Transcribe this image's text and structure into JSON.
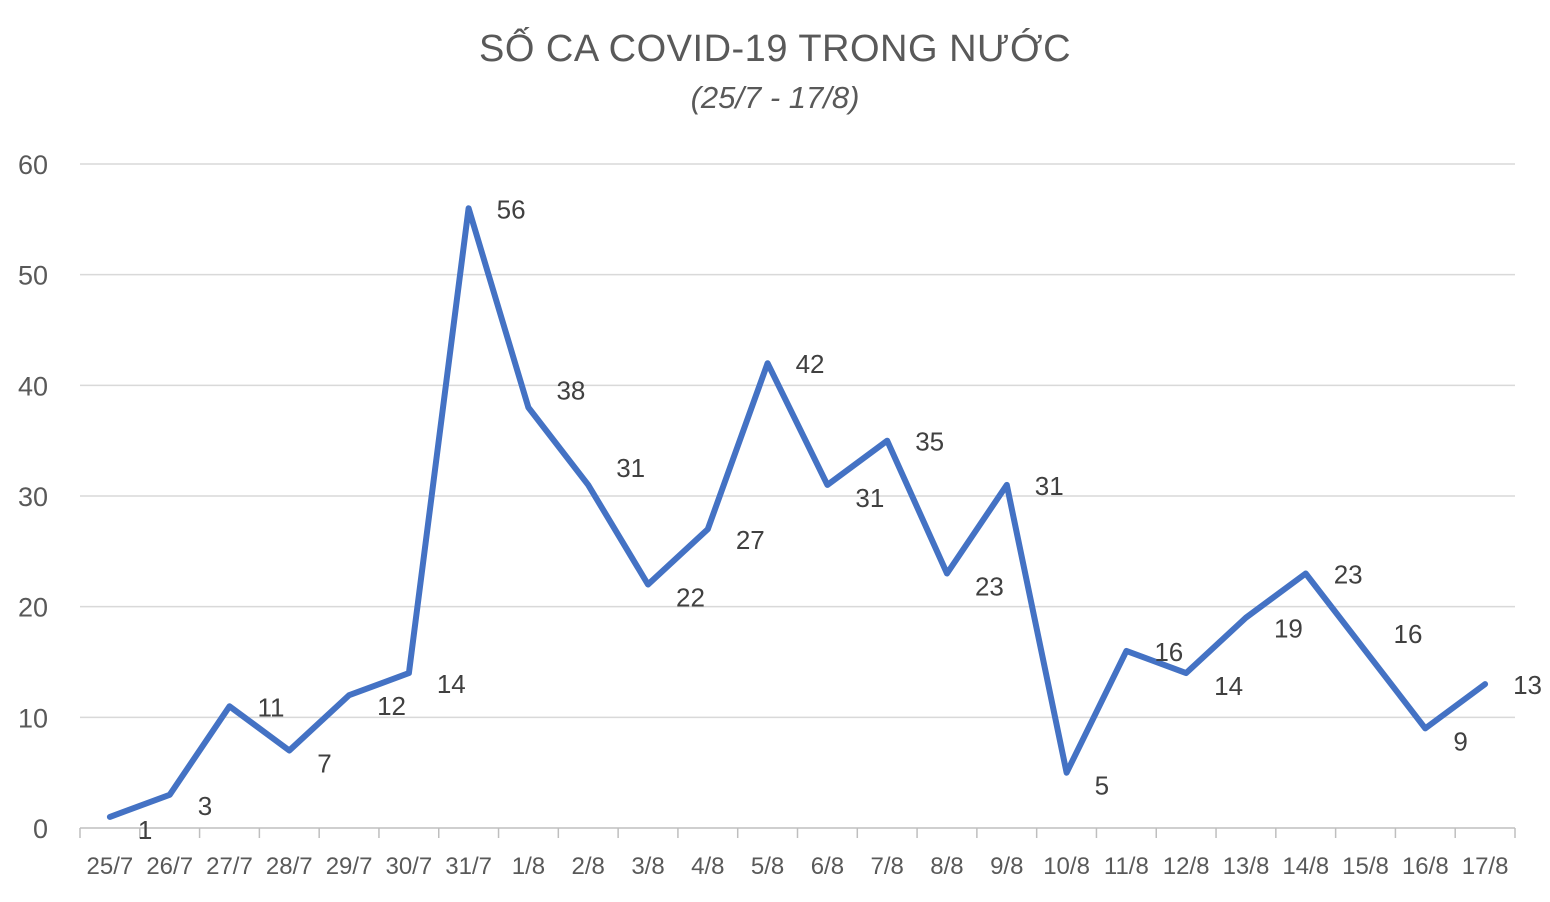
{
  "chart_data": {
    "type": "line",
    "title": "SỐ CA COVID-19 TRONG NƯỚC",
    "subtitle": "(25/7 - 17/8)",
    "xlabel": "",
    "ylabel": "",
    "categories": [
      "25/7",
      "26/7",
      "27/7",
      "28/7",
      "29/7",
      "30/7",
      "31/7",
      "1/8",
      "2/8",
      "3/8",
      "4/8",
      "5/8",
      "6/8",
      "7/8",
      "8/8",
      "9/8",
      "10/8",
      "11/8",
      "12/8",
      "13/8",
      "14/8",
      "15/8",
      "16/8",
      "17/8"
    ],
    "series": [
      {
        "values": [
          1,
          3,
          11,
          7,
          12,
          14,
          56,
          38,
          31,
          22,
          27,
          42,
          31,
          35,
          23,
          31,
          5,
          16,
          14,
          19,
          23,
          16,
          9,
          13
        ]
      }
    ],
    "data_labels": [
      "1",
      "3",
      "11",
      "7",
      "12",
      "14",
      "56",
      "38",
      "31",
      "22",
      "27",
      "42",
      "31",
      "35",
      "23",
      "31",
      "5",
      "16",
      "14",
      "19",
      "23",
      "16",
      "9",
      "13"
    ],
    "yticks": [
      0,
      10,
      20,
      30,
      40,
      50,
      60
    ],
    "ylim": [
      0,
      60
    ],
    "grid": true,
    "legend": "none",
    "colors": {
      "series": "#4472C4",
      "grid": "#d9d9d9",
      "text": "#595959"
    }
  }
}
